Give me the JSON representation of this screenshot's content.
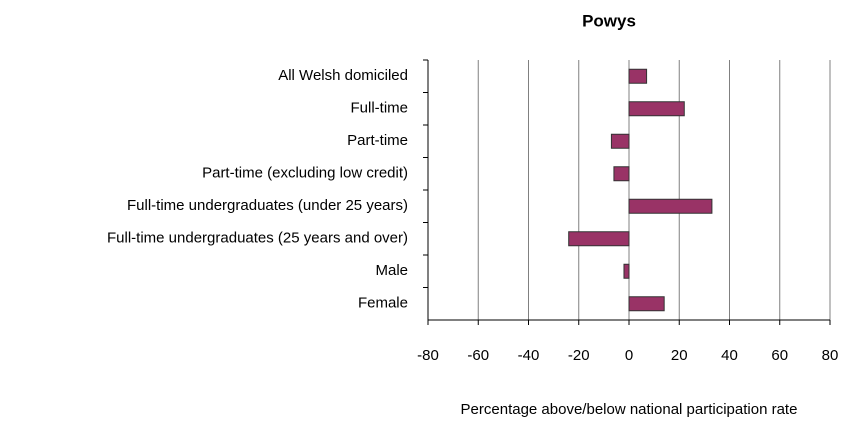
{
  "chart_data": {
    "type": "hbar",
    "title": "Powys",
    "categories": [
      "All Welsh domiciled",
      "Full-time",
      "Part-time",
      "Part-time (excluding low credit)",
      "Full-time undergraduates (under 25 years)",
      "Full-time undergraduates (25 years and over)",
      "Male",
      "Female"
    ],
    "values": [
      7,
      22,
      -7,
      -6,
      33,
      -24,
      -2,
      14
    ],
    "color": "#993366",
    "xlabel": "Percentage above/below national participation rate",
    "xlim": [
      -80,
      80
    ],
    "xticks": [
      -80,
      -60,
      -40,
      -20,
      0,
      20,
      40,
      60,
      80
    ],
    "grid": true
  }
}
